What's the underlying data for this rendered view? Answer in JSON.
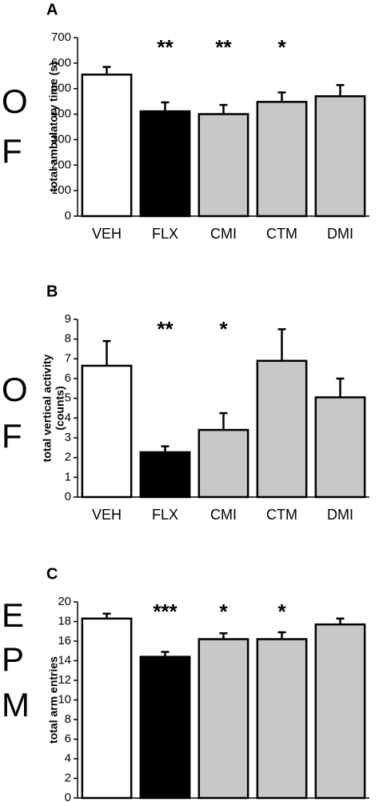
{
  "chart_data": [
    {
      "type": "bar",
      "panel": "A",
      "side_label": [
        "O",
        "F"
      ],
      "y_label": [
        "total ambulatory time (s)"
      ],
      "categories": [
        "VEH",
        "FLX",
        "CMI",
        "CTM",
        "DMI"
      ],
      "values": [
        555,
        411,
        400,
        448,
        470
      ],
      "errors": [
        30,
        35,
        36,
        37,
        44
      ],
      "colors": [
        "#ffffff",
        "#000000",
        "#c8c8c8",
        "#c8c8c8",
        "#c8c8c8"
      ],
      "annotations": [
        null,
        "**",
        "**",
        "*",
        null
      ],
      "ylim": [
        0,
        700
      ],
      "yticks": [
        0,
        100,
        200,
        300,
        400,
        500,
        600,
        700
      ]
    },
    {
      "type": "bar",
      "panel": "B",
      "side_label": [
        "O",
        "F"
      ],
      "y_label": [
        "total vertical activity",
        "(counts)"
      ],
      "categories": [
        "VEH",
        "FLX",
        "CMI",
        "CTM",
        "DMI"
      ],
      "values": [
        6.65,
        2.27,
        3.4,
        6.9,
        5.05
      ],
      "errors": [
        1.25,
        0.3,
        0.85,
        1.6,
        0.95
      ],
      "colors": [
        "#ffffff",
        "#000000",
        "#c8c8c8",
        "#c8c8c8",
        "#c8c8c8"
      ],
      "annotations": [
        null,
        "**",
        "*",
        null,
        null
      ],
      "ylim": [
        0,
        9
      ],
      "yticks": [
        0,
        1,
        2,
        3,
        4,
        5,
        6,
        7,
        8,
        9
      ]
    },
    {
      "type": "bar",
      "panel": "C",
      "side_label": [
        "E",
        "P",
        "M"
      ],
      "y_label": [
        "total arm entries"
      ],
      "categories": [
        "VEH",
        "FLX",
        "CMI",
        "CTM",
        "DMI"
      ],
      "values": [
        18.3,
        14.4,
        16.2,
        16.2,
        17.7
      ],
      "errors": [
        0.5,
        0.5,
        0.6,
        0.7,
        0.6
      ],
      "colors": [
        "#ffffff",
        "#000000",
        "#c8c8c8",
        "#c8c8c8",
        "#c8c8c8"
      ],
      "annotations": [
        null,
        "***",
        "*",
        "*",
        null
      ],
      "ylim": [
        0,
        20
      ],
      "yticks": [
        0,
        2,
        4,
        6,
        8,
        10,
        12,
        14,
        16,
        18,
        20
      ]
    }
  ]
}
